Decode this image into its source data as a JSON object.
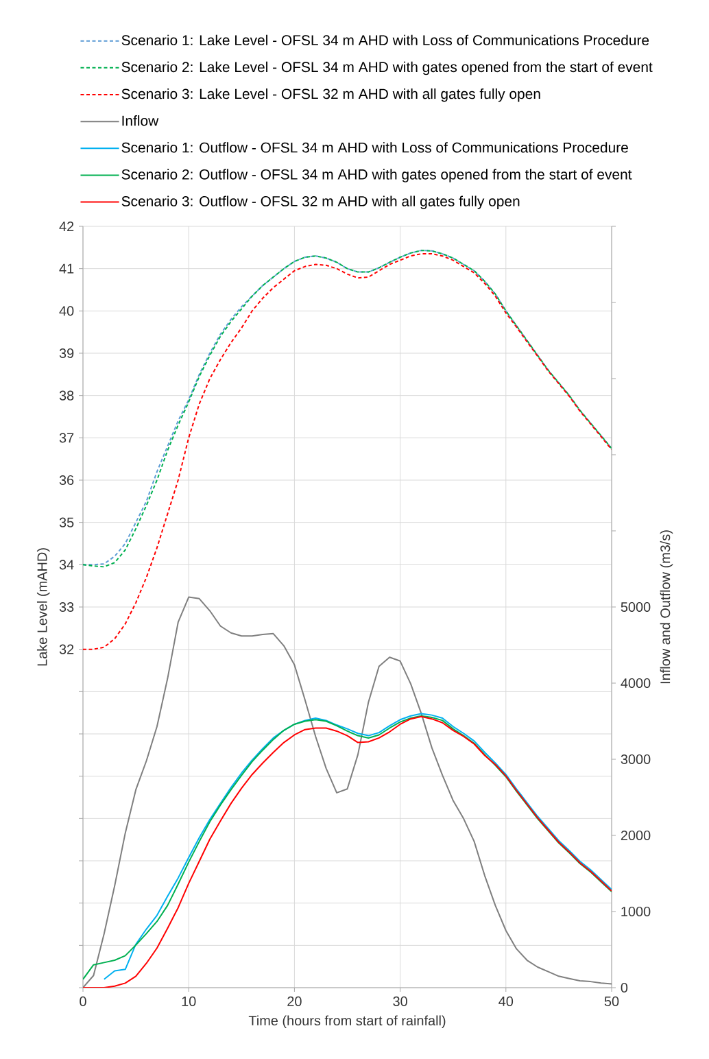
{
  "chart_data": {
    "type": "line",
    "xlabel": "Time (hours from start of rainfall)",
    "ylabel": "Lake Level (mAHD)",
    "y2label": "Inflow and Outflow (m3/s)",
    "x": [
      0,
      1,
      2,
      3,
      4,
      5,
      6,
      7,
      8,
      9,
      10,
      11,
      12,
      13,
      14,
      15,
      16,
      17,
      18,
      19,
      20,
      21,
      22,
      23,
      24,
      25,
      26,
      27,
      28,
      29,
      30,
      31,
      32,
      33,
      34,
      35,
      36,
      37,
      38,
      39,
      40,
      41,
      42,
      43,
      44,
      45,
      46,
      47,
      48,
      49,
      50
    ],
    "series": [
      {
        "name": "Scenario 1: Lake Level - OFSL 34 m AHD with Loss of Communications Procedure",
        "color": "#5b9bd5",
        "line_style": "dashed",
        "values": [
          34.0,
          34.0,
          34.02,
          34.2,
          34.5,
          35.0,
          35.5,
          36.2,
          36.8,
          37.4,
          37.9,
          38.5,
          39.0,
          39.45,
          39.8,
          40.1,
          40.35,
          40.6,
          40.8,
          41.0,
          41.17,
          41.27,
          41.3,
          41.25,
          41.15,
          41.0,
          40.92,
          40.92,
          41.02,
          41.15,
          41.27,
          41.37,
          41.43,
          41.42,
          41.35,
          41.25,
          41.1,
          40.95,
          40.7,
          40.4,
          40.0,
          39.65,
          39.3,
          38.95,
          38.6,
          38.3,
          38.0,
          37.65,
          37.35,
          37.05,
          36.75
        ]
      },
      {
        "name": "Scenario 2: Lake Level - OFSL 34 m AHD with gates opened from the start of event",
        "color": "#00b050",
        "line_style": "dashed",
        "values": [
          34.0,
          33.97,
          33.95,
          34.05,
          34.35,
          34.85,
          35.4,
          36.0,
          36.7,
          37.3,
          37.85,
          38.45,
          38.95,
          39.4,
          39.75,
          40.05,
          40.35,
          40.6,
          40.8,
          41.0,
          41.17,
          41.27,
          41.3,
          41.25,
          41.15,
          41.0,
          40.92,
          40.92,
          41.02,
          41.15,
          41.27,
          41.37,
          41.43,
          41.42,
          41.35,
          41.25,
          41.1,
          40.95,
          40.7,
          40.4,
          40.0,
          39.65,
          39.3,
          38.95,
          38.6,
          38.3,
          38.0,
          37.65,
          37.35,
          37.05,
          36.75
        ]
      },
      {
        "name": "Scenario 3: Lake Level - OFSL 32 m AHD with all gates fully open",
        "color": "#ff0000",
        "line_style": "dashed",
        "values": [
          32.0,
          32.0,
          32.05,
          32.25,
          32.6,
          33.1,
          33.7,
          34.4,
          35.2,
          36.0,
          37.0,
          37.8,
          38.4,
          38.85,
          39.25,
          39.6,
          40.0,
          40.3,
          40.55,
          40.75,
          40.95,
          41.05,
          41.1,
          41.08,
          41.0,
          40.87,
          40.78,
          40.8,
          40.95,
          41.1,
          41.2,
          41.3,
          41.35,
          41.35,
          41.3,
          41.2,
          41.05,
          40.9,
          40.65,
          40.35,
          39.95,
          39.62,
          39.27,
          38.93,
          38.58,
          38.28,
          37.98,
          37.63,
          37.33,
          37.03,
          36.72
        ]
      },
      {
        "name": "Inflow",
        "color": "#7f7f7f",
        "line_style": "solid",
        "axis": "y2",
        "values": [
          0,
          160,
          710,
          1340,
          2030,
          2600,
          2980,
          3430,
          4060,
          4800,
          5130,
          5110,
          4950,
          4750,
          4660,
          4620,
          4620,
          4640,
          4650,
          4490,
          4240,
          3780,
          3300,
          2880,
          2560,
          2610,
          3060,
          3750,
          4220,
          4340,
          4290,
          3990,
          3600,
          3150,
          2790,
          2460,
          2220,
          1920,
          1470,
          1080,
          750,
          510,
          360,
          270,
          210,
          150,
          120,
          90,
          80,
          60,
          50
        ]
      },
      {
        "name": "Scenario 1: Outflow - OFSL 34 m AHD with Loss of Communications Procedure",
        "color": "#00b0f0",
        "line_style": "solid",
        "axis": "y2",
        "values": [
          null,
          null,
          110,
          220,
          240,
          570,
          770,
          950,
          1200,
          1440,
          1710,
          1970,
          2210,
          2420,
          2630,
          2820,
          2990,
          3140,
          3280,
          3380,
          3460,
          3510,
          3540,
          3510,
          3450,
          3400,
          3340,
          3310,
          3350,
          3440,
          3520,
          3570,
          3600,
          3580,
          3540,
          3430,
          3340,
          3240,
          3090,
          2950,
          2800,
          2610,
          2430,
          2250,
          2090,
          1930,
          1800,
          1660,
          1550,
          1420,
          1290
        ]
      },
      {
        "name": "Scenario 2: Outflow - OFSL 34 m AHD with gates opened from the start of event",
        "color": "#00b050",
        "line_style": "solid",
        "axis": "y2",
        "values": [
          110,
          300,
          330,
          360,
          420,
          560,
          710,
          870,
          1080,
          1360,
          1650,
          1920,
          2180,
          2400,
          2600,
          2790,
          2970,
          3120,
          3260,
          3380,
          3460,
          3500,
          3520,
          3500,
          3440,
          3370,
          3310,
          3280,
          3320,
          3410,
          3490,
          3540,
          3570,
          3550,
          3510,
          3400,
          3310,
          3210,
          3060,
          2920,
          2770,
          2580,
          2400,
          2220,
          2060,
          1900,
          1770,
          1630,
          1520,
          1390,
          1260
        ]
      },
      {
        "name": "Scenario 3: Outflow - OFSL 32 m AHD with all gates fully open",
        "color": "#ff0000",
        "line_style": "solid",
        "axis": "y2",
        "values": [
          0,
          0,
          0,
          20,
          60,
          150,
          320,
          520,
          780,
          1050,
          1370,
          1660,
          1950,
          2190,
          2420,
          2620,
          2800,
          2950,
          3090,
          3220,
          3320,
          3390,
          3410,
          3410,
          3370,
          3310,
          3220,
          3230,
          3280,
          3360,
          3460,
          3530,
          3560,
          3530,
          3480,
          3380,
          3300,
          3200,
          3050,
          2930,
          2780,
          2590,
          2410,
          2230,
          2070,
          1910,
          1780,
          1640,
          1530,
          1400,
          1270
        ]
      }
    ],
    "xlim": [
      0,
      50
    ],
    "xticks": [
      0,
      10,
      20,
      30,
      40,
      50
    ],
    "ylim": [
      24,
      42
    ],
    "yticks": [
      {
        "value": 24,
        "label": null
      },
      {
        "value": 25,
        "label": null
      },
      {
        "value": 26,
        "label": null
      },
      {
        "value": 27,
        "label": null
      },
      {
        "value": 28,
        "label": null
      },
      {
        "value": 29,
        "label": null
      },
      {
        "value": 30,
        "label": null
      },
      {
        "value": 31,
        "label": null
      },
      32,
      33,
      34,
      35,
      36,
      37,
      38,
      39,
      40,
      41,
      42
    ],
    "y2lim": [
      0,
      10000
    ],
    "y2ticks": [
      0,
      1000,
      2000,
      3000,
      4000,
      5000,
      {
        "value": 6000,
        "label": null
      },
      {
        "value": 7000,
        "label": null
      },
      {
        "value": 8000,
        "label": null
      },
      {
        "value": 9000,
        "label": null
      },
      {
        "value": 10000,
        "label": null
      }
    ],
    "grid": true,
    "legend": "top",
    "marker": "none"
  }
}
